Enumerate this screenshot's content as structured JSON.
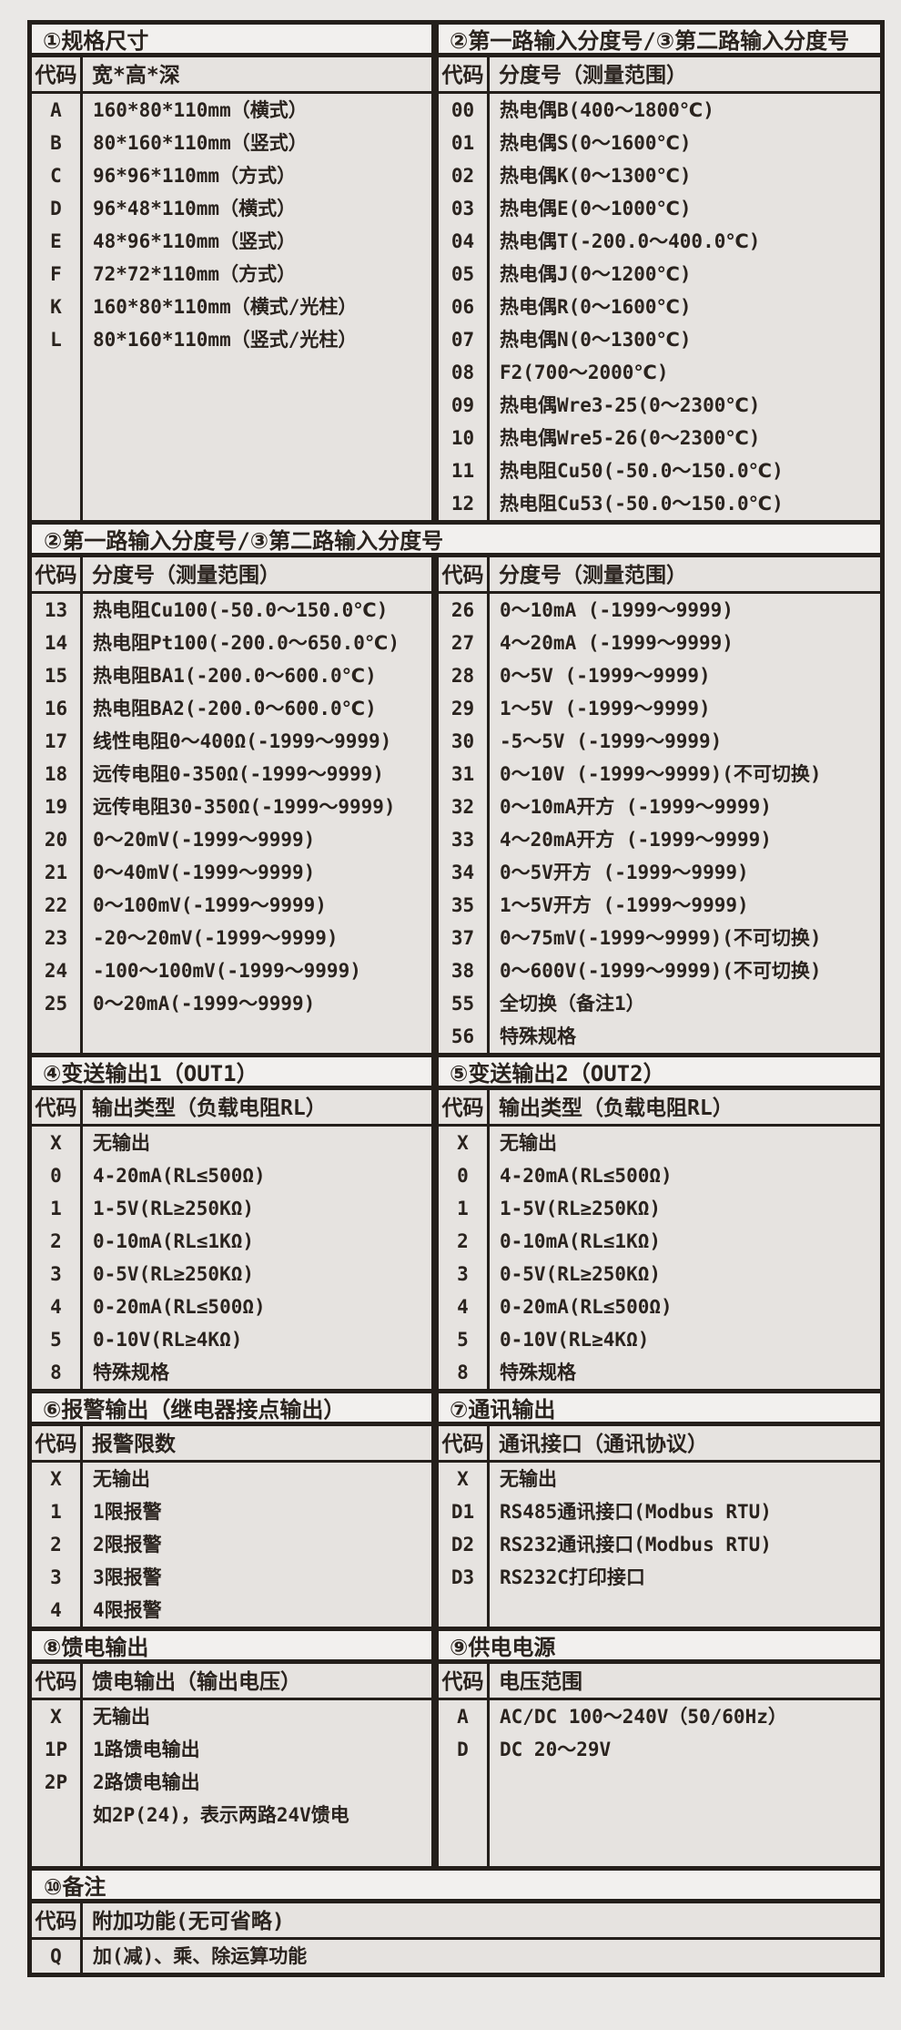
{
  "page": {
    "colors": {
      "border": "#241f1b",
      "cell_background": "#e6e3e0",
      "header_background": "#f2f0ee",
      "text": "#2a231e",
      "page_background": "#eae8e6"
    },
    "bands": [
      {
        "panels": [
          {
            "title": "①规格尺寸",
            "col_code": "代码",
            "col_desc": "宽*高*深",
            "rows": [
              {
                "code": "A",
                "desc": "160*80*110mm（横式）"
              },
              {
                "code": "B",
                "desc": "80*160*110mm（竖式）"
              },
              {
                "code": "C",
                "desc": "96*96*110mm（方式）"
              },
              {
                "code": "D",
                "desc": "96*48*110mm（横式）"
              },
              {
                "code": "E",
                "desc": "48*96*110mm（竖式）"
              },
              {
                "code": "F",
                "desc": "72*72*110mm（方式）"
              },
              {
                "code": "K",
                "desc": "160*80*110mm（横式/光柱）"
              },
              {
                "code": "L",
                "desc": "80*160*110mm（竖式/光柱）"
              }
            ]
          },
          {
            "title": "②第一路输入分度号/③第二路输入分度号",
            "col_code": "代码",
            "col_desc": "分度号（测量范围）",
            "rows": [
              {
                "code": "00",
                "desc": "热电偶B(400～1800℃)"
              },
              {
                "code": "01",
                "desc": "热电偶S(0～1600℃)"
              },
              {
                "code": "02",
                "desc": "热电偶K(0～1300℃)"
              },
              {
                "code": "03",
                "desc": "热电偶E(0～1000℃)"
              },
              {
                "code": "04",
                "desc": "热电偶T(-200.0～400.0℃)"
              },
              {
                "code": "05",
                "desc": "热电偶J(0～1200℃)"
              },
              {
                "code": "06",
                "desc": "热电偶R(0～1600℃)"
              },
              {
                "code": "07",
                "desc": "热电偶N(0～1300℃)"
              },
              {
                "code": "08",
                "desc": "F2(700～2000℃)"
              },
              {
                "code": "09",
                "desc": "热电偶Wre3-25(0～2300℃)"
              },
              {
                "code": "10",
                "desc": "热电偶Wre5-26(0～2300℃)"
              },
              {
                "code": "11",
                "desc": "热电阻Cu50(-50.0～150.0℃)"
              },
              {
                "code": "12",
                "desc": "热电阻Cu53(-50.0～150.0℃)"
              }
            ]
          }
        ]
      },
      {
        "title": "②第一路输入分度号/③第二路输入分度号",
        "panels": [
          {
            "col_code": "代码",
            "col_desc": "分度号（测量范围）",
            "rows": [
              {
                "code": "13",
                "desc": "热电阻Cu100(-50.0～150.0℃)"
              },
              {
                "code": "14",
                "desc": "热电阻Pt100(-200.0～650.0℃)"
              },
              {
                "code": "15",
                "desc": "热电阻BA1(-200.0～600.0℃)"
              },
              {
                "code": "16",
                "desc": "热电阻BA2(-200.0～600.0℃)"
              },
              {
                "code": "17",
                "desc": "线性电阻0～400Ω(-1999～9999)"
              },
              {
                "code": "18",
                "desc": "远传电阻0-350Ω(-1999～9999)"
              },
              {
                "code": "19",
                "desc": "远传电阻30-350Ω(-1999～9999)"
              },
              {
                "code": "20",
                "desc": "0～20mV(-1999～9999)"
              },
              {
                "code": "21",
                "desc": "0～40mV(-1999～9999)"
              },
              {
                "code": "22",
                "desc": "0～100mV(-1999～9999)"
              },
              {
                "code": "23",
                "desc": "-20～20mV(-1999～9999)"
              },
              {
                "code": "24",
                "desc": "-100～100mV(-1999～9999)"
              },
              {
                "code": "25",
                "desc": "0～20mA(-1999～9999)"
              }
            ]
          },
          {
            "col_code": "代码",
            "col_desc": "分度号（测量范围）",
            "rows": [
              {
                "code": "26",
                "desc": "0～10mA (-1999～9999)"
              },
              {
                "code": "27",
                "desc": "4～20mA (-1999～9999)"
              },
              {
                "code": "28",
                "desc": "0～5V (-1999～9999)"
              },
              {
                "code": "29",
                "desc": "1～5V (-1999～9999)"
              },
              {
                "code": "30",
                "desc": "-5～5V (-1999～9999)"
              },
              {
                "code": "31",
                "desc": "0～10V (-1999～9999)(不可切换)"
              },
              {
                "code": "32",
                "desc": "0～10mA开方 (-1999～9999)"
              },
              {
                "code": "33",
                "desc": "4～20mA开方 (-1999～9999)"
              },
              {
                "code": "34",
                "desc": "0～5V开方 (-1999～9999)"
              },
              {
                "code": "35",
                "desc": "1～5V开方 (-1999～9999)"
              },
              {
                "code": "37",
                "desc": "0～75mV(-1999～9999)(不可切换)"
              },
              {
                "code": "38",
                "desc": "0～600V(-1999～9999)(不可切换)"
              },
              {
                "code": "55",
                "desc": "全切换（备注1）"
              },
              {
                "code": "56",
                "desc": "特殊规格"
              }
            ]
          }
        ]
      },
      {
        "panels": [
          {
            "title": "④变送输出1（OUT1）",
            "col_code": "代码",
            "col_desc": "输出类型（负载电阻RL）",
            "rows": [
              {
                "code": "X",
                "desc": "无输出"
              },
              {
                "code": "0",
                "desc": "4-20mA(RL≤500Ω)"
              },
              {
                "code": "1",
                "desc": "1-5V(RL≥250KΩ)"
              },
              {
                "code": "2",
                "desc": "0-10mA(RL≤1KΩ)"
              },
              {
                "code": "3",
                "desc": "0-5V(RL≥250KΩ)"
              },
              {
                "code": "4",
                "desc": "0-20mA(RL≤500Ω)"
              },
              {
                "code": "5",
                "desc": "0-10V(RL≥4KΩ)"
              },
              {
                "code": "8",
                "desc": "特殊规格"
              }
            ]
          },
          {
            "title": "⑤变送输出2（OUT2）",
            "col_code": "代码",
            "col_desc": "输出类型（负载电阻RL）",
            "rows": [
              {
                "code": "X",
                "desc": "无输出"
              },
              {
                "code": "0",
                "desc": "4-20mA(RL≤500Ω)"
              },
              {
                "code": "1",
                "desc": "1-5V(RL≥250KΩ)"
              },
              {
                "code": "2",
                "desc": "0-10mA(RL≤1KΩ)"
              },
              {
                "code": "3",
                "desc": "0-5V(RL≥250KΩ)"
              },
              {
                "code": "4",
                "desc": "0-20mA(RL≤500Ω)"
              },
              {
                "code": "5",
                "desc": "0-10V(RL≥4KΩ)"
              },
              {
                "code": "8",
                "desc": "特殊规格"
              }
            ]
          }
        ]
      },
      {
        "panels": [
          {
            "title": "⑥报警输出（继电器接点输出）",
            "col_code": "代码",
            "col_desc": "报警限数",
            "rows": [
              {
                "code": "X",
                "desc": "无输出"
              },
              {
                "code": "1",
                "desc": "1限报警"
              },
              {
                "code": "2",
                "desc": "2限报警"
              },
              {
                "code": "3",
                "desc": "3限报警"
              },
              {
                "code": "4",
                "desc": "4限报警"
              }
            ]
          },
          {
            "title": "⑦通讯输出",
            "col_code": "代码",
            "col_desc": "通讯接口（通讯协议）",
            "rows": [
              {
                "code": "X",
                "desc": "无输出"
              },
              {
                "code": "D1",
                "desc": "RS485通讯接口(Modbus RTU)"
              },
              {
                "code": "D2",
                "desc": "RS232通讯接口(Modbus RTU)"
              },
              {
                "code": "D3",
                "desc": "RS232C打印接口"
              }
            ]
          }
        ]
      },
      {
        "panels": [
          {
            "title": "⑧馈电输出",
            "col_code": "代码",
            "col_desc": "馈电输出（输出电压）",
            "rows": [
              {
                "code": "X",
                "desc": "无输出"
              },
              {
                "code": "1P",
                "desc": "1路馈电输出"
              },
              {
                "code": "2P",
                "desc": "2路馈电输出"
              },
              {
                "code": "",
                "desc": "如2P(24)，表示两路24V馈电"
              }
            ]
          },
          {
            "title": "⑨供电电源",
            "col_code": "代码",
            "col_desc": "电压范围",
            "rows": [
              {
                "code": "A",
                "desc": "AC/DC 100～240V（50/60Hz）"
              },
              {
                "code": "D",
                "desc": "DC 20～29V"
              }
            ]
          }
        ]
      },
      {
        "title": "⑩备注",
        "panels": [
          {
            "col_code": "代码",
            "col_desc": "附加功能(无可省略)",
            "rows": [
              {
                "code": "Q",
                "desc": "加(减)、乘、除运算功能"
              }
            ]
          }
        ]
      }
    ]
  }
}
